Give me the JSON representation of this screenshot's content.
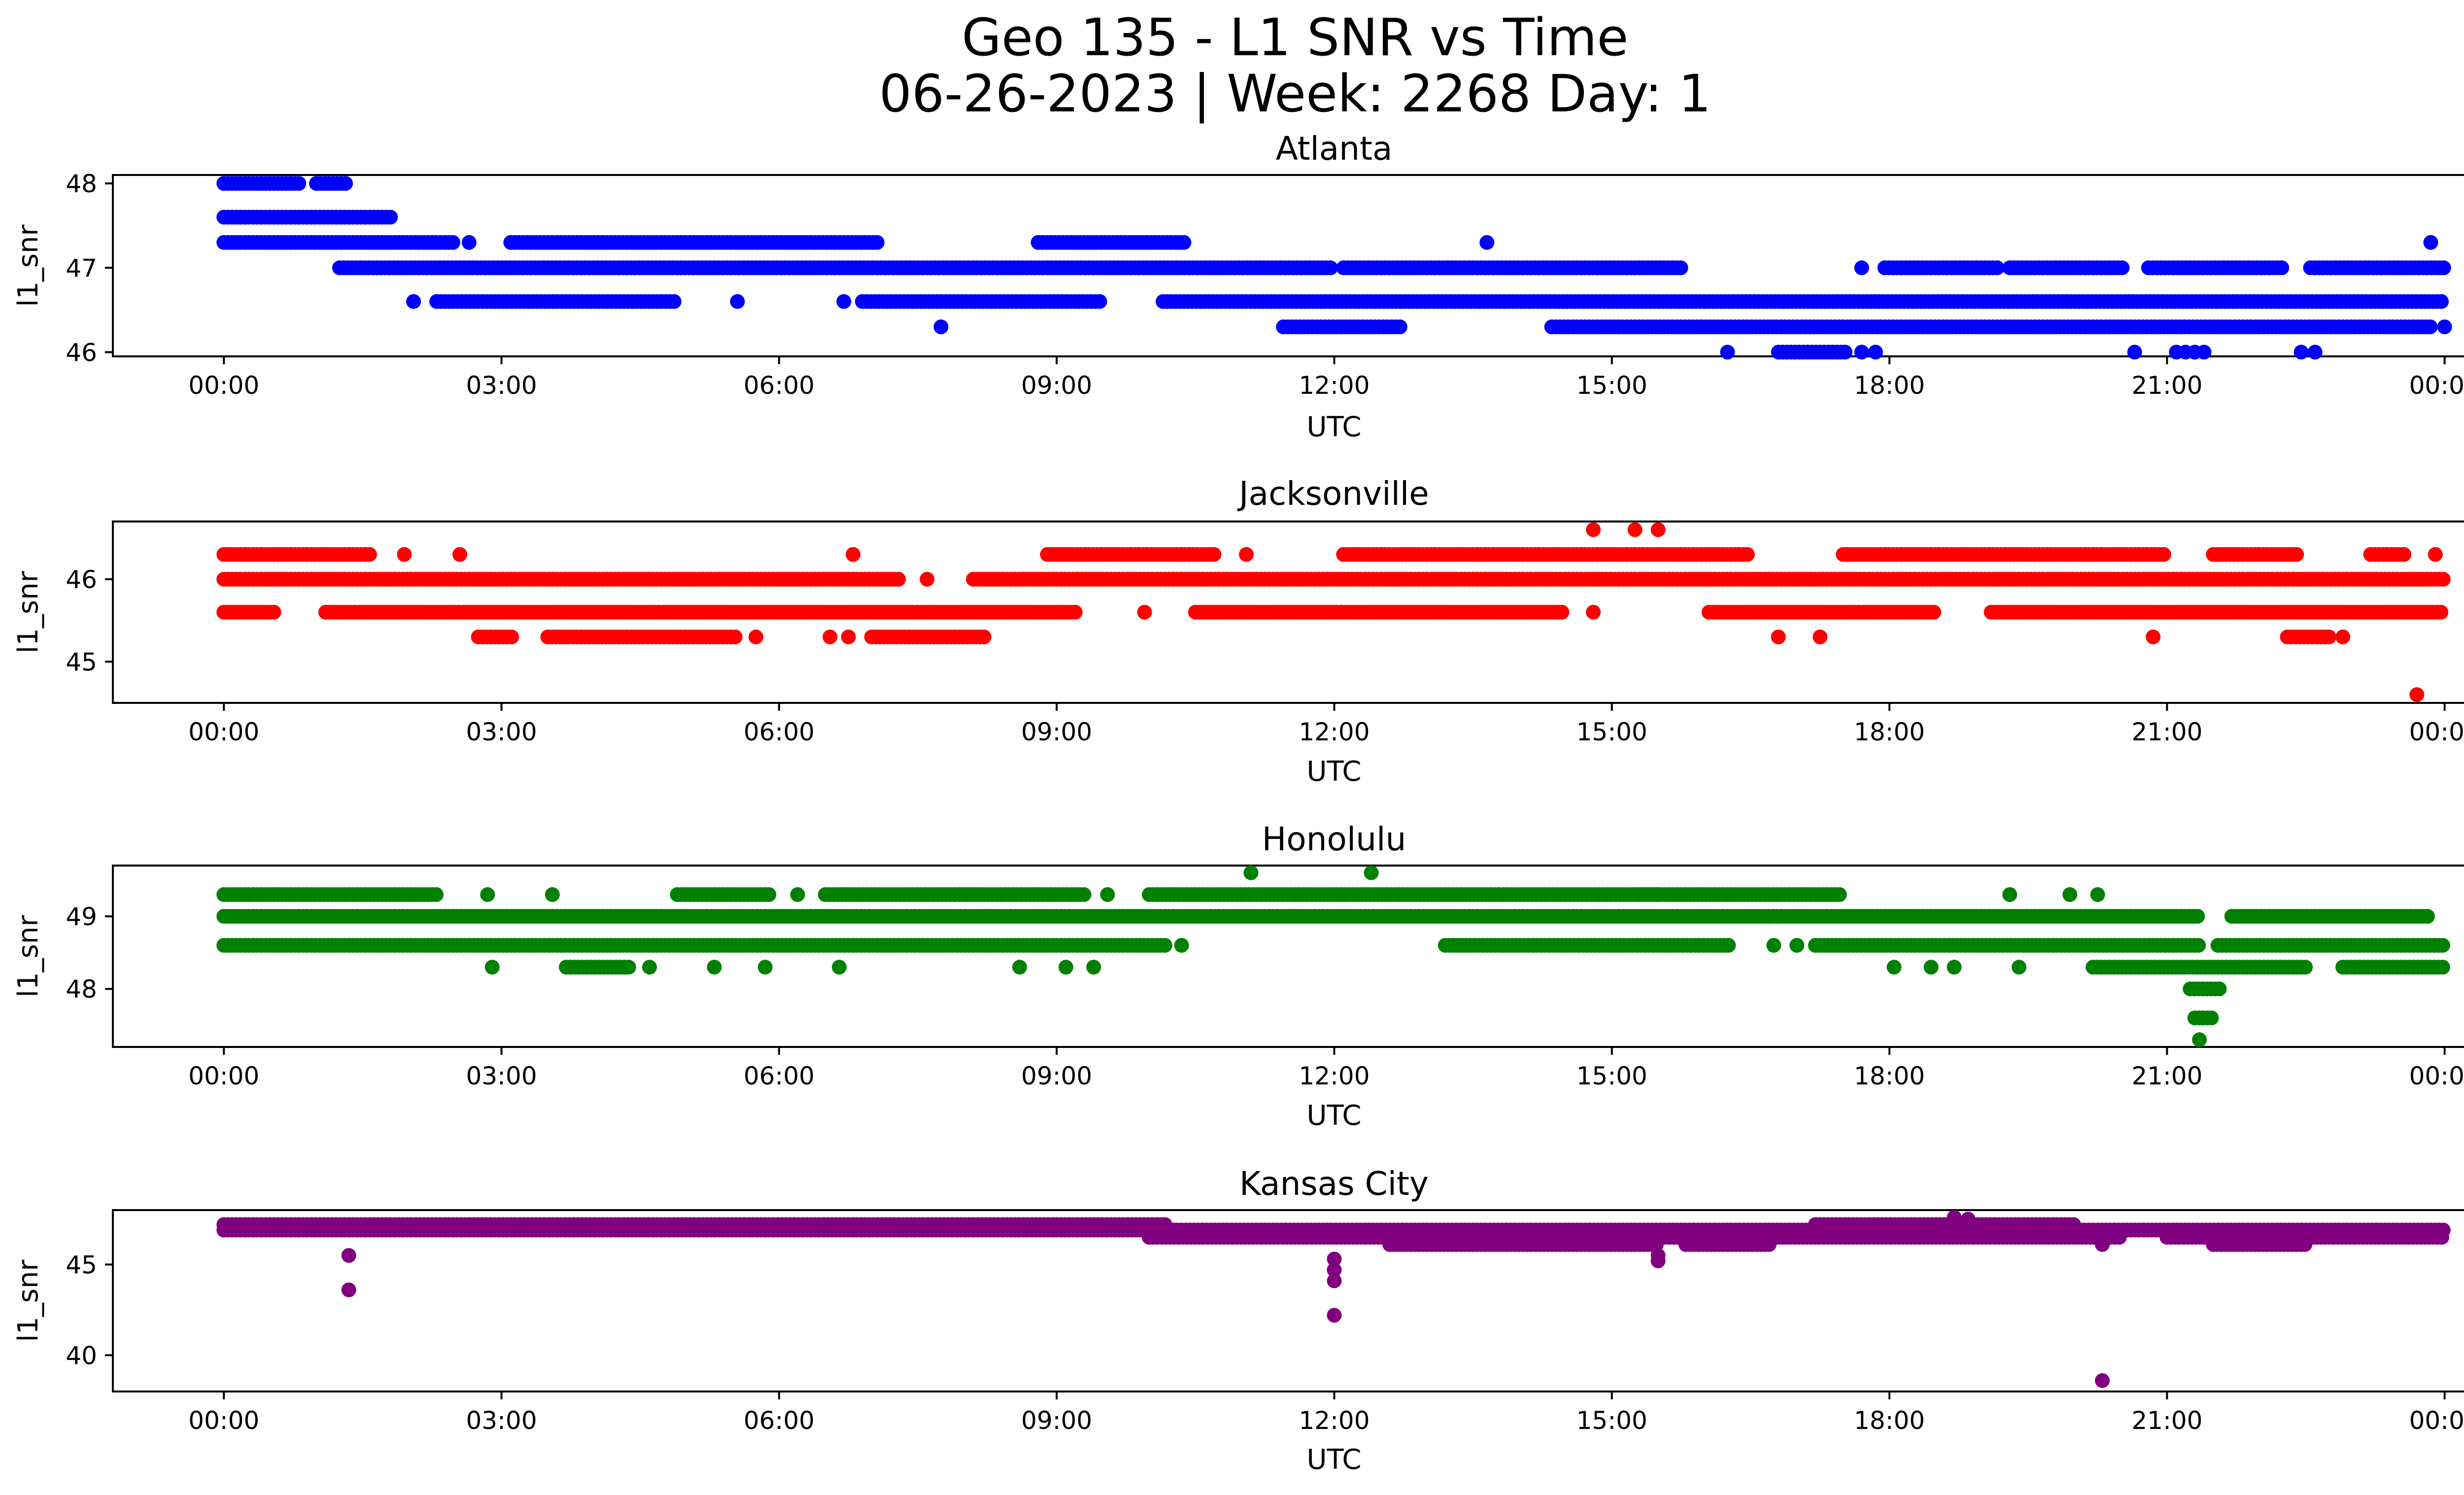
{
  "chart_data": {
    "type": "scatter",
    "title": "Geo 135 - L1 SNR vs Time",
    "subtitle": "06-26-2023 | Week: 2268 Day: 1",
    "xlabel": "UTC",
    "xticks": [
      "00:00",
      "03:00",
      "06:00",
      "09:00",
      "12:00",
      "15:00",
      "18:00",
      "21:00",
      "00:00"
    ],
    "xlim_hours": [
      -1.2,
      25.2
    ],
    "panels": [
      {
        "name": "Atlanta",
        "color": "#0000ff",
        "ylabel": "l1_snr",
        "ylim": [
          45.95,
          48.1
        ],
        "yticks": [
          46,
          47,
          48
        ],
        "ytick_labels": [
          "46",
          "47",
          "48"
        ],
        "levels": [
          {
            "y": 48.0,
            "ranges": [
              [
                0.0,
                0.85
              ],
              [
                1.0,
                1.35
              ]
            ],
            "isolated": []
          },
          {
            "y": 47.6,
            "ranges": [
              [
                0.0,
                1.8
              ]
            ],
            "isolated": []
          },
          {
            "y": 47.3,
            "ranges": [
              [
                0.0,
                2.5
              ],
              [
                3.1,
                7.1
              ],
              [
                8.8,
                10.4
              ]
            ],
            "isolated": [
              2.65,
              13.65,
              23.85
            ]
          },
          {
            "y": 47.0,
            "ranges": [
              [
                1.25,
                12.0
              ],
              [
                12.1,
                15.75
              ],
              [
                17.95,
                19.2
              ],
              [
                19.3,
                20.55
              ],
              [
                20.8,
                22.25
              ],
              [
                22.55,
                24.0
              ]
            ],
            "isolated": [
              17.7
            ]
          },
          {
            "y": 46.6,
            "ranges": [
              [
                2.3,
                4.9
              ],
              [
                6.9,
                9.5
              ],
              [
                10.15,
                24.0
              ]
            ],
            "isolated": [
              2.05,
              5.55,
              6.7
            ]
          },
          {
            "y": 46.3,
            "ranges": [
              [
                11.45,
                12.75
              ],
              [
                14.35,
                23.85
              ]
            ],
            "isolated": [
              7.75,
              24.0
            ]
          },
          {
            "y": 46.0,
            "ranges": [
              [
                16.8,
                17.55
              ]
            ],
            "isolated": [
              16.25,
              17.7,
              17.85,
              20.65,
              21.1,
              21.2,
              21.3,
              21.4,
              22.45,
              22.6
            ]
          }
        ]
      },
      {
        "name": "Jacksonville",
        "color": "#ff0000",
        "ylabel": "l1_snr",
        "ylim": [
          44.5,
          46.7
        ],
        "yticks": [
          45,
          46
        ],
        "ytick_labels": [
          "45",
          "46"
        ],
        "levels": [
          {
            "y": 46.6,
            "ranges": [],
            "isolated": [
              14.8,
              15.25,
              15.5
            ]
          },
          {
            "y": 46.3,
            "ranges": [
              [
                0.0,
                1.6
              ],
              [
                8.9,
                10.7
              ],
              [
                12.1,
                16.5
              ],
              [
                17.5,
                21.0
              ],
              [
                21.5,
                22.4
              ],
              [
                23.2,
                23.6
              ]
            ],
            "isolated": [
              1.95,
              2.55,
              6.8,
              11.05,
              23.9
            ]
          },
          {
            "y": 46.0,
            "ranges": [
              [
                0.0,
                7.3
              ],
              [
                8.1,
                24.0
              ]
            ],
            "isolated": [
              7.6
            ]
          },
          {
            "y": 45.6,
            "ranges": [
              [
                0.0,
                0.55
              ],
              [
                1.1,
                9.2
              ],
              [
                10.5,
                14.5
              ],
              [
                16.05,
                18.5
              ],
              [
                19.1,
                24.0
              ]
            ],
            "isolated": [
              9.95,
              14.8
            ]
          },
          {
            "y": 45.3,
            "ranges": [
              [
                2.75,
                3.15
              ],
              [
                3.5,
                5.55
              ],
              [
                7.0,
                8.25
              ],
              [
                22.3,
                22.75
              ]
            ],
            "isolated": [
              5.75,
              6.55,
              6.75,
              16.8,
              17.25,
              20.85,
              22.9
            ]
          },
          {
            "y": 44.6,
            "ranges": [],
            "isolated": [
              23.7
            ]
          }
        ]
      },
      {
        "name": "Honolulu",
        "color": "#008000",
        "ylabel": "l1_snr",
        "ylim": [
          47.2,
          49.7
        ],
        "yticks": [
          48,
          49
        ],
        "ytick_labels": [
          "48",
          "49"
        ],
        "levels": [
          {
            "y": 49.6,
            "ranges": [],
            "isolated": [
              11.1,
              12.4
            ]
          },
          {
            "y": 49.3,
            "ranges": [
              [
                0.0,
                2.3
              ],
              [
                4.9,
                5.9
              ],
              [
                6.5,
                8.2
              ],
              [
                7.9,
                9.3
              ],
              [
                10.0,
                15.5
              ],
              [
                15.3,
                17.5
              ]
            ],
            "isolated": [
              2.85,
              3.55,
              6.2,
              9.55,
              19.3,
              19.95,
              20.25
            ]
          },
          {
            "y": 49.0,
            "ranges": [
              [
                0.0,
                21.35
              ],
              [
                21.7,
                23.85
              ]
            ],
            "isolated": []
          },
          {
            "y": 48.6,
            "ranges": [
              [
                0.0,
                10.2
              ],
              [
                13.2,
                16.3
              ],
              [
                17.2,
                21.35
              ],
              [
                21.55,
                24.0
              ]
            ],
            "isolated": [
              10.35,
              16.75,
              17.0
            ]
          },
          {
            "y": 48.3,
            "ranges": [
              [
                3.7,
                4.4
              ],
              [
                20.2,
                22.5
              ],
              [
                22.9,
                24.0
              ]
            ],
            "isolated": [
              2.9,
              4.6,
              5.3,
              5.85,
              6.65,
              8.6,
              9.1,
              9.4,
              18.05,
              18.45,
              18.7,
              19.4
            ]
          },
          {
            "y": 48.0,
            "ranges": [
              [
                21.25,
                21.6
              ]
            ],
            "isolated": []
          },
          {
            "y": 47.6,
            "ranges": [
              [
                21.3,
                21.5
              ]
            ],
            "isolated": []
          },
          {
            "y": 47.3,
            "ranges": [],
            "isolated": [
              21.35
            ]
          }
        ]
      },
      {
        "name": "Kansas City",
        "color": "#800080",
        "ylabel": "l1_snr",
        "ylim": [
          38.0,
          48.0
        ],
        "yticks": [
          40,
          45
        ],
        "ytick_labels": [
          "40",
          "45"
        ],
        "levels": [
          {
            "y": 47.2,
            "ranges": [
              [
                0.0,
                10.2
              ],
              [
                17.2,
                20.0
              ]
            ],
            "isolated": []
          },
          {
            "y": 46.9,
            "ranges": [
              [
                0.0,
                24.0
              ]
            ],
            "isolated": []
          },
          {
            "y": 46.5,
            "ranges": [
              [
                10.0,
                20.5
              ],
              [
                21.0,
                24.0
              ]
            ],
            "isolated": []
          },
          {
            "y": 46.1,
            "ranges": [
              [
                12.6,
                15.5
              ],
              [
                15.8,
                16.7
              ],
              [
                21.5,
                22.5
              ]
            ],
            "isolated": [
              20.3
            ]
          },
          {
            "y": 45.5,
            "ranges": [],
            "isolated": [
              1.35,
              15.5
            ]
          }
        ],
        "outliers": [
          [
            1.35,
            43.6
          ],
          [
            12.0,
            45.3
          ],
          [
            12.0,
            44.7
          ],
          [
            12.0,
            44.1
          ],
          [
            12.0,
            42.2
          ],
          [
            15.5,
            45.2
          ],
          [
            20.3,
            38.6
          ],
          [
            18.7,
            47.6
          ],
          [
            18.85,
            47.5
          ]
        ]
      }
    ]
  }
}
